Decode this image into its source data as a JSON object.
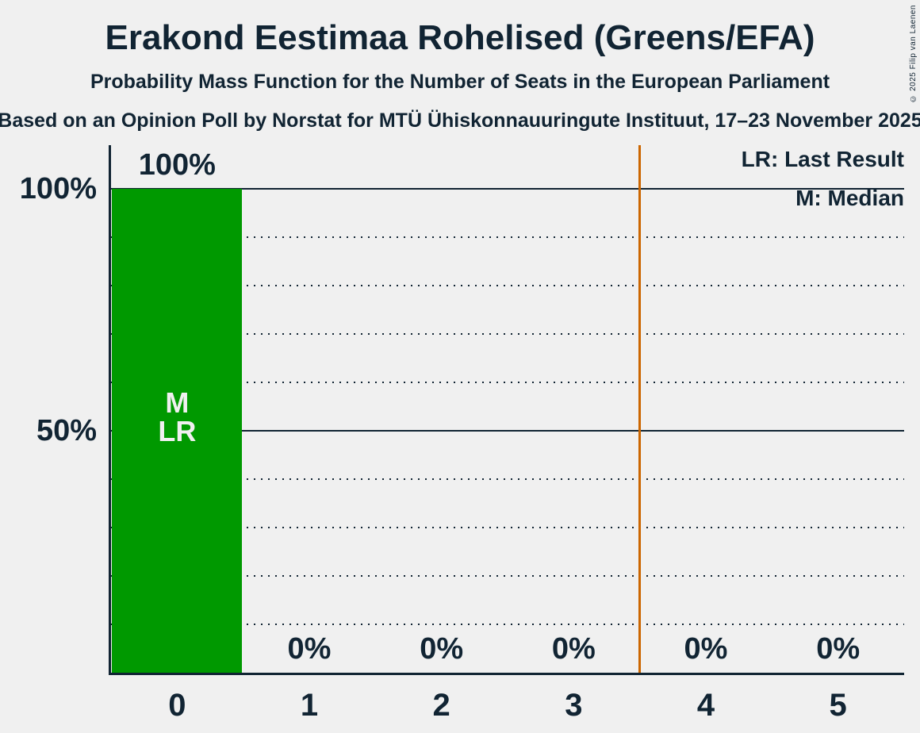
{
  "header": {
    "title": "Erakond Eestimaa Rohelised (Greens/EFA)",
    "subtitle": "Probability Mass Function for the Number of Seats in the European Parliament",
    "source_line": "Based on an Opinion Poll by Norstat for MTÜ Ühiskonnauuringute Instituut, 17–23 November 2025",
    "copyright": "© 2025 Filip van Laenen"
  },
  "legend": {
    "last_result": "LR: Last Result",
    "median": "M: Median"
  },
  "chart_data": {
    "type": "bar",
    "title": "Erakond Eestimaa Rohelised (Greens/EFA)",
    "subtitle": "Probability Mass Function for the Number of Seats in the European Parliament",
    "categories": [
      "0",
      "1",
      "2",
      "3",
      "4",
      "5"
    ],
    "values": [
      100,
      0,
      0,
      0,
      0,
      0
    ],
    "bar_value_labels": [
      "100%",
      "0%",
      "0%",
      "0%",
      "0%",
      "0%"
    ],
    "xlabel": "",
    "ylabel": "",
    "ylim": [
      0,
      100
    ],
    "ytick_values": [
      100,
      50
    ],
    "ytick_labels": [
      "100%",
      "50%"
    ],
    "gridline_step_percent": 10,
    "solid_gridline_values": [
      50,
      100
    ],
    "grid": "on",
    "legend_position": "top-right",
    "median_bar_index": 0,
    "median_label": "M",
    "last_result_bar_index": 0,
    "last_result_label": "LR",
    "vertical_marker_x": 3.5,
    "colors": {
      "bar": "#009900",
      "vertical_marker": "#CC6600",
      "ink": "#112433",
      "bar_text": "#F0F0F0",
      "background": "#F0F0F0"
    }
  }
}
